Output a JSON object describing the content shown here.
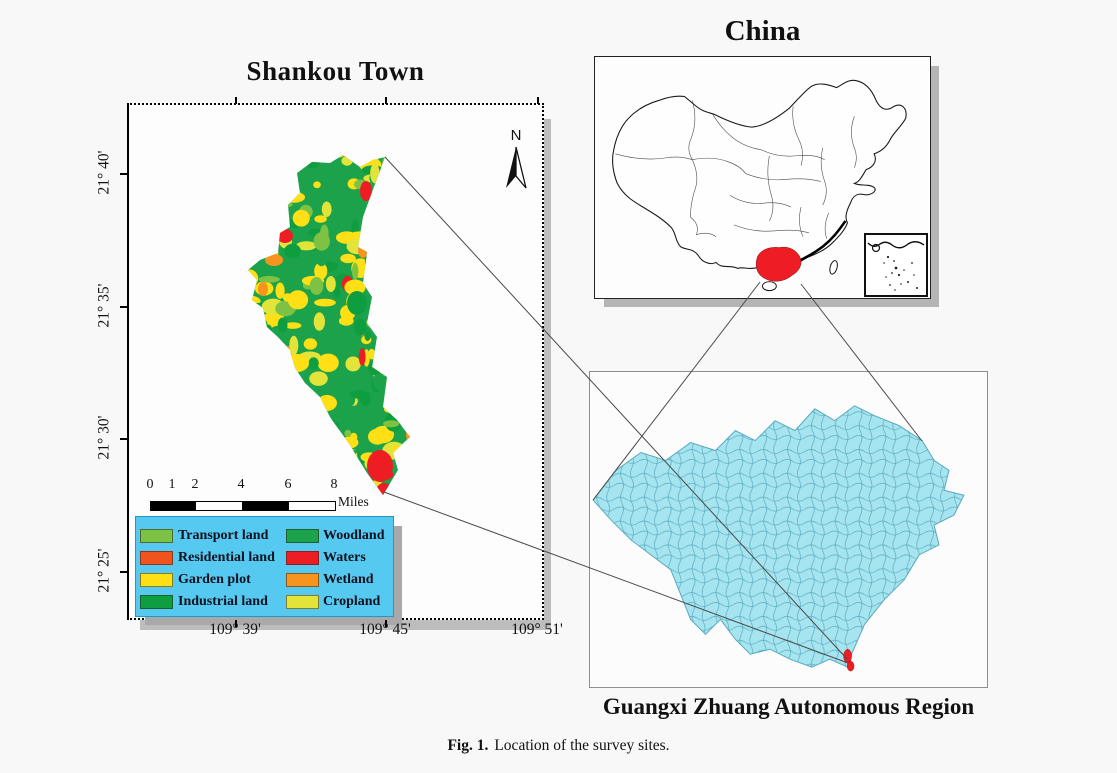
{
  "figure": {
    "caption_label": "Fig. 1.",
    "caption_text": "Location of the survey sites."
  },
  "shankou": {
    "title": "Shankou Town",
    "north_label": "N",
    "axes": {
      "y_ticks": [
        "21° 40'",
        "21° 35'",
        "21° 30'",
        "21° 25'"
      ],
      "x_ticks": [
        "109° 39'",
        "109° 45'",
        "109° 51'"
      ]
    },
    "scalebar": {
      "ticks": [
        "0",
        "1",
        "2",
        "4",
        "6",
        "8"
      ],
      "unit": "Miles"
    },
    "legend": {
      "background": "#55c9ef",
      "items": [
        {
          "key": "transport",
          "label": "Transport land",
          "color": "#7dc242"
        },
        {
          "key": "residential",
          "label": "Residential land",
          "color": "#f1531f"
        },
        {
          "key": "garden",
          "label": "Garden plot",
          "color": "#ffdf15"
        },
        {
          "key": "industrial",
          "label": "Industrial land",
          "color": "#0f9e3f"
        },
        {
          "key": "woodland",
          "label": "Woodland",
          "color": "#1ba24a"
        },
        {
          "key": "waters",
          "label": "Waters",
          "color": "#ee1c23"
        },
        {
          "key": "wetland",
          "label": "Wetland",
          "color": "#f7941e"
        },
        {
          "key": "cropland",
          "label": "Cropland",
          "color": "#e3e43a"
        }
      ]
    }
  },
  "china": {
    "title": "China",
    "highlight_color": "#ee1c23",
    "outline_color": "#1a1a1a"
  },
  "guangxi": {
    "title": "Guangxi Zhuang Autonomous Region",
    "fill_color": "#a6e4f0",
    "border_color": "#58a9bd",
    "highlight_color": "#ee1c23"
  }
}
